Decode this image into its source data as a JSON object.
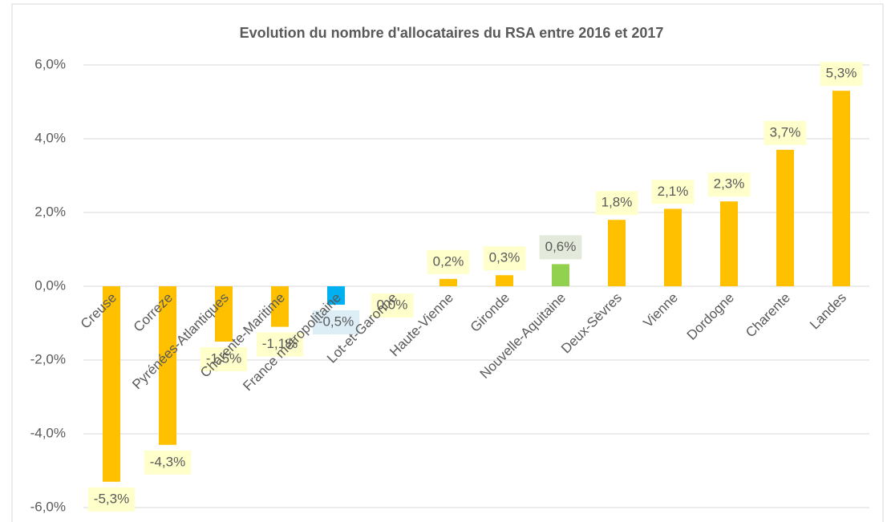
{
  "chart_data": {
    "type": "bar",
    "title": "Evolution du nombre d'allocataires du RSA entre 2016 et 2017",
    "categories": [
      "Creuse",
      "Correze",
      "Pyrénées-Atlantiques",
      "Charente-Maritime",
      "France métropolitaine",
      "Lot-et-Garonne",
      "Haute-Vienne",
      "Gironde",
      "Nouvelle-Aquitaine",
      "Deux-Sèvres",
      "Vienne",
      "Dordogne",
      "Charente",
      "Landes"
    ],
    "values": [
      -5.3,
      -4.3,
      -1.5,
      -1.1,
      -0.5,
      0.0,
      0.2,
      0.3,
      0.6,
      1.8,
      2.1,
      2.3,
      3.7,
      5.3
    ],
    "value_labels": [
      "-5,3%",
      "-4,3%",
      "-1,5%",
      "-1,1%",
      "-0,5%",
      "0,0%",
      "0,2%",
      "0,3%",
      "0,6%",
      "1,8%",
      "2,1%",
      "2,3%",
      "3,7%",
      "5,3%"
    ],
    "colors": [
      "#FFC000",
      "#FFC000",
      "#FFC000",
      "#FFC000",
      "#00B0F0",
      "#FFC000",
      "#FFC000",
      "#FFC000",
      "#92D050",
      "#FFC000",
      "#FFC000",
      "#FFC000",
      "#FFC000",
      "#FFC000"
    ],
    "value_label_colors": [
      "#FFFFCC",
      "#FFFFCC",
      "#FFFFCC",
      "#FFFFCC",
      "#DDEEF6",
      "#FFFFCC",
      "#FFFFCC",
      "#FFFFCC",
      "#E4EADB",
      "#FFFFCC",
      "#FFFFCC",
      "#FFFFCC",
      "#FFFFCC",
      "#FFFFCC"
    ],
    "ylim": [
      -6,
      6
    ],
    "yticks": [
      {
        "value": -6,
        "label": "-6,0%"
      },
      {
        "value": -4,
        "label": "-4,0%"
      },
      {
        "value": -2,
        "label": "-2,0%"
      },
      {
        "value": 0,
        "label": "0,0%"
      },
      {
        "value": 2,
        "label": "2,0%"
      },
      {
        "value": 4,
        "label": "4,0%"
      },
      {
        "value": 6,
        "label": "6,0%"
      }
    ],
    "grid": true
  }
}
